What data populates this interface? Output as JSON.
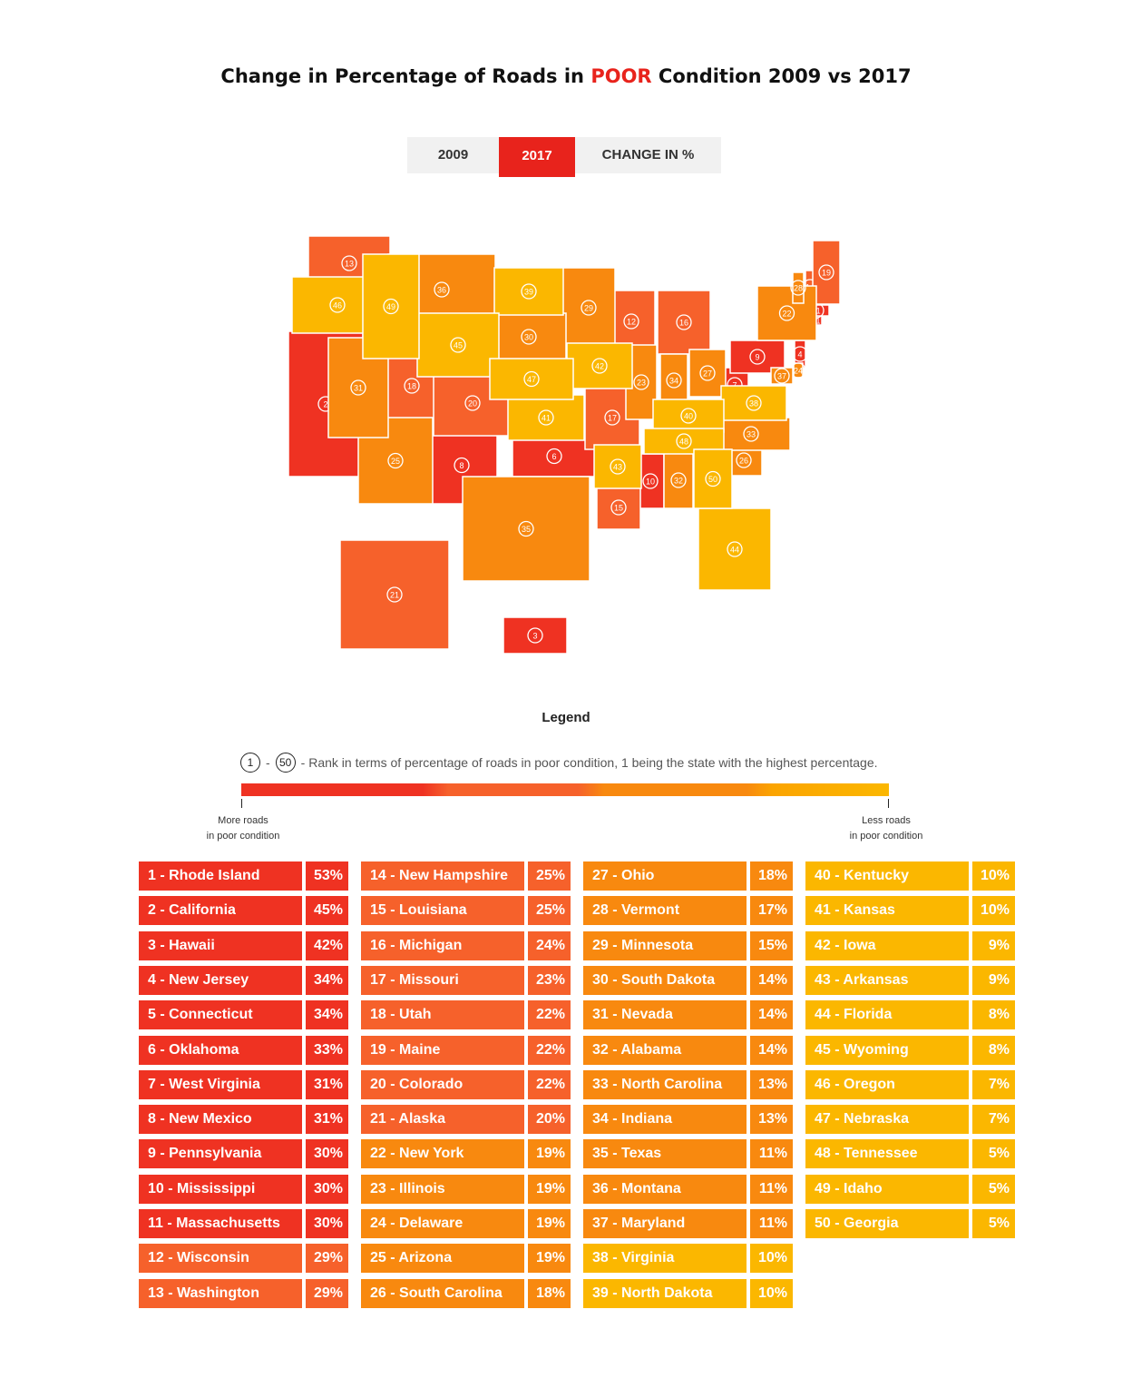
{
  "title": {
    "prefix": "Change in Percentage of Roads in ",
    "highlight": "POOR",
    "suffix": " Condition 2009 vs 2017"
  },
  "tabs": [
    {
      "label": "2009",
      "active": false
    },
    {
      "label": "2017",
      "active": true
    },
    {
      "label": "CHANGE IN %",
      "active": false
    }
  ],
  "legend": {
    "title": "Legend",
    "rank_first": "1",
    "rank_sep": "-",
    "rank_last": "50",
    "rank_text": "- Rank in terms of percentage of roads in poor condition, 1 being the state with the highest percentage.",
    "left_label_1": "More roads",
    "left_label_2": "in poor condition",
    "right_label_1": "Less roads",
    "right_label_2": "in poor condition"
  },
  "colors": {
    "red": "#ef3222",
    "orange_red": "#f6612b",
    "orange": "#f8890f",
    "amber": "#fbb700",
    "accent": "#e8231c"
  },
  "chart_data": {
    "type": "table",
    "title": "Change in Percentage of Roads in POOR Condition 2009 vs 2017",
    "selected_year": "2017",
    "rows": [
      {
        "rank": 1,
        "state": "Rhode Island",
        "value": "53%"
      },
      {
        "rank": 2,
        "state": "California",
        "value": "45%"
      },
      {
        "rank": 3,
        "state": "Hawaii",
        "value": "42%"
      },
      {
        "rank": 4,
        "state": "New Jersey",
        "value": "34%"
      },
      {
        "rank": 5,
        "state": "Connecticut",
        "value": "34%"
      },
      {
        "rank": 6,
        "state": "Oklahoma",
        "value": "33%"
      },
      {
        "rank": 7,
        "state": "West Virginia",
        "value": "31%"
      },
      {
        "rank": 8,
        "state": "New Mexico",
        "value": "31%"
      },
      {
        "rank": 9,
        "state": "Pennsylvania",
        "value": "30%"
      },
      {
        "rank": 10,
        "state": "Mississippi",
        "value": "30%"
      },
      {
        "rank": 11,
        "state": "Massachusetts",
        "value": "30%"
      },
      {
        "rank": 12,
        "state": "Wisconsin",
        "value": "29%"
      },
      {
        "rank": 13,
        "state": "Washington",
        "value": "29%"
      },
      {
        "rank": 14,
        "state": "New Hampshire",
        "value": "25%"
      },
      {
        "rank": 15,
        "state": "Louisiana",
        "value": "25%"
      },
      {
        "rank": 16,
        "state": "Michigan",
        "value": "24%"
      },
      {
        "rank": 17,
        "state": "Missouri",
        "value": "23%"
      },
      {
        "rank": 18,
        "state": "Utah",
        "value": "22%"
      },
      {
        "rank": 19,
        "state": "Maine",
        "value": "22%"
      },
      {
        "rank": 20,
        "state": "Colorado",
        "value": "22%"
      },
      {
        "rank": 21,
        "state": "Alaska",
        "value": "20%"
      },
      {
        "rank": 22,
        "state": "New York",
        "value": "19%"
      },
      {
        "rank": 23,
        "state": "Illinois",
        "value": "19%"
      },
      {
        "rank": 24,
        "state": "Delaware",
        "value": "19%"
      },
      {
        "rank": 25,
        "state": "Arizona",
        "value": "19%"
      },
      {
        "rank": 26,
        "state": "South Carolina",
        "value": "18%"
      },
      {
        "rank": 27,
        "state": "Ohio",
        "value": "18%"
      },
      {
        "rank": 28,
        "state": "Vermont",
        "value": "17%"
      },
      {
        "rank": 29,
        "state": "Minnesota",
        "value": "15%"
      },
      {
        "rank": 30,
        "state": "South Dakota",
        "value": "14%"
      },
      {
        "rank": 31,
        "state": "Nevada",
        "value": "14%"
      },
      {
        "rank": 32,
        "state": "Alabama",
        "value": "14%"
      },
      {
        "rank": 33,
        "state": "North Carolina",
        "value": "13%"
      },
      {
        "rank": 34,
        "state": "Indiana",
        "value": "13%"
      },
      {
        "rank": 35,
        "state": "Texas",
        "value": "11%"
      },
      {
        "rank": 36,
        "state": "Montana",
        "value": "11%"
      },
      {
        "rank": 37,
        "state": "Maryland",
        "value": "11%"
      },
      {
        "rank": 38,
        "state": "Virginia",
        "value": "10%"
      },
      {
        "rank": 39,
        "state": "North Dakota",
        "value": "10%"
      },
      {
        "rank": 40,
        "state": "Kentucky",
        "value": "10%"
      },
      {
        "rank": 41,
        "state": "Kansas",
        "value": "10%"
      },
      {
        "rank": 42,
        "state": "Iowa",
        "value": "9%"
      },
      {
        "rank": 43,
        "state": "Arkansas",
        "value": "9%"
      },
      {
        "rank": 44,
        "state": "Florida",
        "value": "8%"
      },
      {
        "rank": 45,
        "state": "Wyoming",
        "value": "8%"
      },
      {
        "rank": 46,
        "state": "Oregon",
        "value": "7%"
      },
      {
        "rank": 47,
        "state": "Nebraska",
        "value": "7%"
      },
      {
        "rank": 48,
        "state": "Tennessee",
        "value": "5%"
      },
      {
        "rank": 49,
        "state": "Idaho",
        "value": "5%"
      },
      {
        "rank": 50,
        "state": "Georgia",
        "value": "5%"
      }
    ]
  }
}
